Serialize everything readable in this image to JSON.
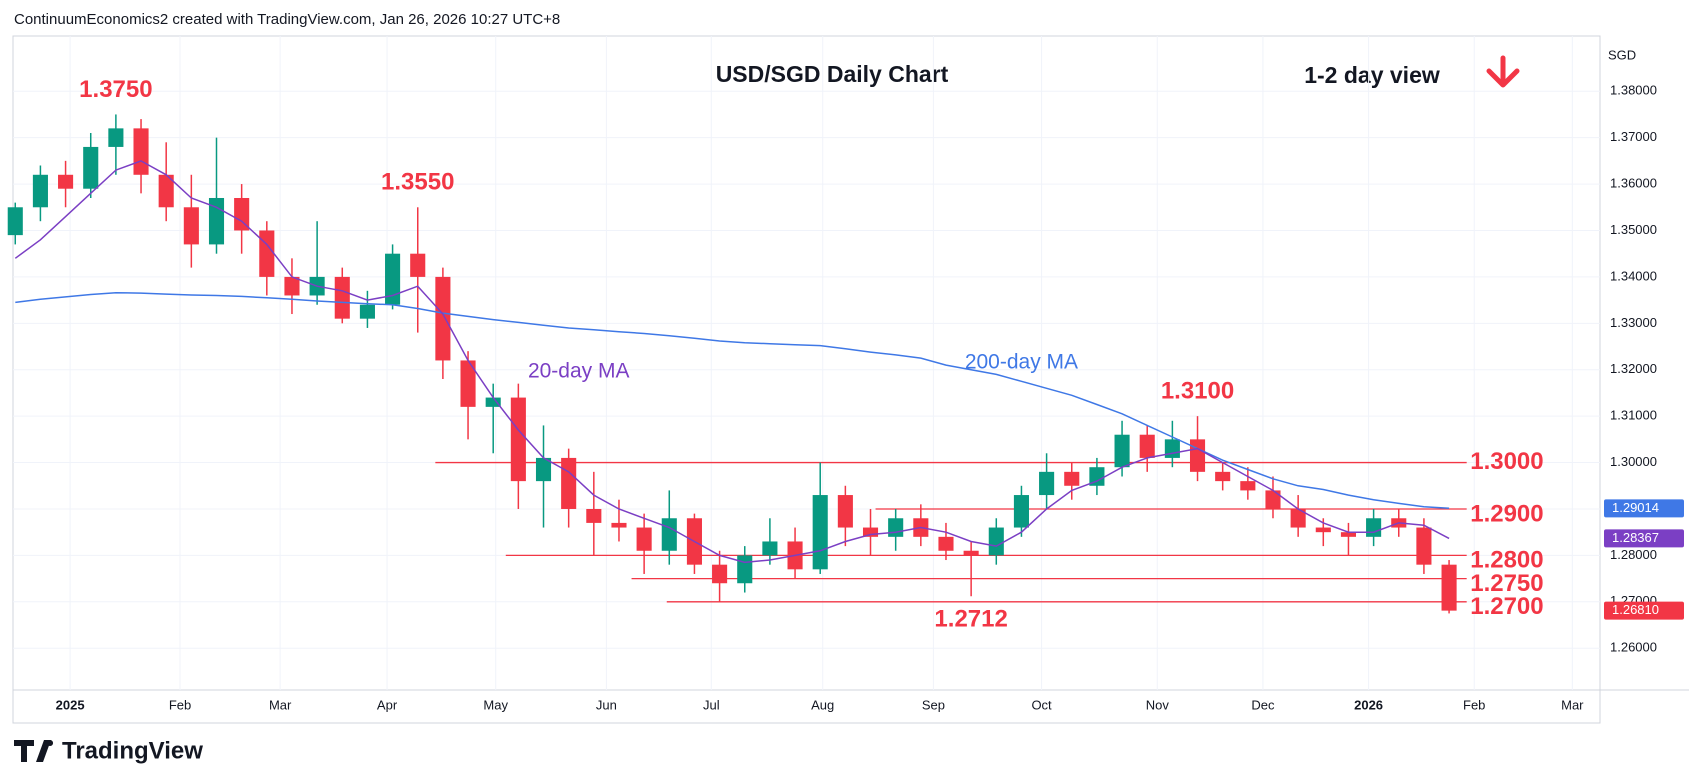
{
  "header": "ContinuumEconomics2 created with TradingView.com, Jan 26, 2026 10:27 UTC+8",
  "logo": "TradingView",
  "chart_data": {
    "type": "candlestick",
    "title": "USD/SGD Daily Chart",
    "subtitle": "1-2 day view",
    "currency": "SGD",
    "up_color": "#089981",
    "down_color": "#f23645",
    "categories": [
      null,
      null,
      null,
      null,
      null,
      null,
      null,
      null,
      null,
      null,
      null,
      null,
      null,
      null,
      null,
      null,
      null,
      null,
      null,
      null,
      null,
      null,
      null,
      null,
      null,
      null,
      null,
      null,
      null,
      null,
      null,
      null,
      null,
      null,
      null,
      null,
      null,
      null,
      null,
      null,
      null,
      null,
      null,
      null,
      null,
      null,
      null,
      null,
      null,
      null,
      null,
      null,
      null,
      null,
      null,
      null,
      null,
      null
    ],
    "open": [
      1.349,
      1.355,
      1.362,
      1.359,
      1.368,
      1.372,
      1.362,
      1.355,
      1.347,
      1.357,
      1.35,
      1.34,
      1.336,
      1.34,
      1.331,
      1.334,
      1.345,
      1.34,
      1.322,
      1.312,
      1.314,
      1.296,
      1.301,
      1.29,
      1.287,
      1.286,
      1.281,
      1.288,
      1.278,
      1.274,
      1.28,
      1.283,
      1.277,
      1.293,
      1.286,
      1.284,
      1.288,
      1.284,
      1.281,
      1.28,
      1.286,
      1.293,
      1.298,
      1.295,
      1.299,
      1.306,
      1.301,
      1.305,
      1.298,
      1.296,
      1.294,
      1.29,
      1.286,
      1.285,
      1.284,
      1.288,
      1.286,
      1.278
    ],
    "high": [
      1.356,
      1.364,
      1.365,
      1.371,
      1.375,
      1.374,
      1.369,
      1.362,
      1.37,
      1.36,
      1.352,
      1.344,
      1.352,
      1.342,
      1.337,
      1.347,
      1.355,
      1.342,
      1.324,
      1.317,
      1.317,
      1.308,
      1.303,
      1.298,
      1.292,
      1.289,
      1.294,
      1.289,
      1.281,
      1.282,
      1.288,
      1.286,
      1.3,
      1.295,
      1.29,
      1.29,
      1.291,
      1.287,
      1.283,
      1.288,
      1.295,
      1.302,
      1.3,
      1.301,
      1.309,
      1.308,
      1.309,
      1.31,
      1.3,
      1.299,
      1.297,
      1.293,
      1.288,
      1.287,
      1.29,
      1.29,
      1.288,
      1.279
    ],
    "low": [
      1.347,
      1.352,
      1.355,
      1.357,
      1.362,
      1.358,
      1.352,
      1.342,
      1.345,
      1.345,
      1.336,
      1.332,
      1.334,
      1.33,
      1.329,
      1.333,
      1.328,
      1.318,
      1.305,
      1.302,
      1.29,
      1.286,
      1.286,
      1.28,
      1.283,
      1.276,
      1.278,
      1.276,
      1.27,
      1.272,
      1.278,
      1.275,
      1.276,
      1.282,
      1.28,
      1.281,
      1.282,
      1.279,
      1.2712,
      1.278,
      1.284,
      1.29,
      1.292,
      1.293,
      1.297,
      1.298,
      1.299,
      1.296,
      1.294,
      1.292,
      1.288,
      1.284,
      1.282,
      1.28,
      1.282,
      1.284,
      1.276,
      1.2675
    ],
    "close": [
      1.355,
      1.362,
      1.359,
      1.368,
      1.372,
      1.362,
      1.355,
      1.347,
      1.357,
      1.35,
      1.34,
      1.336,
      1.34,
      1.331,
      1.334,
      1.345,
      1.34,
      1.322,
      1.312,
      1.314,
      1.296,
      1.301,
      1.29,
      1.287,
      1.286,
      1.281,
      1.288,
      1.278,
      1.274,
      1.28,
      1.283,
      1.277,
      1.293,
      1.286,
      1.284,
      1.288,
      1.284,
      1.281,
      1.28,
      1.286,
      1.293,
      1.298,
      1.295,
      1.299,
      1.306,
      1.301,
      1.305,
      1.298,
      1.296,
      1.294,
      1.29,
      1.286,
      1.285,
      1.284,
      1.288,
      1.286,
      1.278,
      1.2681
    ],
    "last_label": "1.26810",
    "series": [
      {
        "name": "200-day MA",
        "color": "#3f78e6",
        "last_label": "1.29014",
        "values": [
          1.3345,
          1.3352,
          1.3357,
          1.3362,
          1.3366,
          1.3365,
          1.3363,
          1.3361,
          1.336,
          1.3358,
          1.3355,
          1.3352,
          1.3348,
          1.3345,
          1.3342,
          1.334,
          1.3332,
          1.3322,
          1.3315,
          1.3308,
          1.3302,
          1.3296,
          1.329,
          1.3286,
          1.3282,
          1.3278,
          1.3273,
          1.3268,
          1.3262,
          1.3258,
          1.3256,
          1.3254,
          1.3252,
          1.3245,
          1.3238,
          1.3232,
          1.3225,
          1.321,
          1.32,
          1.319,
          1.3175,
          1.316,
          1.3145,
          1.3125,
          1.3105,
          1.308,
          1.3055,
          1.303,
          1.3005,
          1.2985,
          1.2965,
          1.295,
          1.2942,
          1.293,
          1.292,
          1.2912,
          1.2905,
          1.29014
        ]
      },
      {
        "name": "20-day MA",
        "color": "#7b3fc4",
        "last_label": "1.28367",
        "values": [
          1.344,
          1.348,
          1.353,
          1.358,
          1.363,
          1.365,
          1.362,
          1.357,
          1.355,
          1.352,
          1.347,
          1.34,
          1.338,
          1.337,
          1.335,
          1.336,
          1.338,
          1.332,
          1.322,
          1.314,
          1.307,
          1.301,
          1.298,
          1.293,
          1.29,
          1.288,
          1.286,
          1.283,
          1.28,
          1.2785,
          1.279,
          1.28,
          1.281,
          1.283,
          1.2845,
          1.285,
          1.286,
          1.285,
          1.283,
          1.282,
          1.285,
          1.29,
          1.294,
          1.296,
          1.299,
          1.301,
          1.302,
          1.303,
          1.3,
          1.297,
          1.294,
          1.29,
          1.287,
          1.285,
          1.285,
          1.287,
          1.2865,
          1.28367
        ]
      }
    ],
    "levels": [
      {
        "value": 1.3,
        "label": "1.3000",
        "from": 16.7
      },
      {
        "value": 1.29,
        "label": "1.2900",
        "from": 34.2
      },
      {
        "value": 1.28,
        "label": "1.2800",
        "from": 19.5
      },
      {
        "value": 1.275,
        "label": "1.2750",
        "from": 24.5
      },
      {
        "value": 1.27,
        "label": "1.2700",
        "from": 25.9
      }
    ],
    "annotations": [
      {
        "label": "1.3750",
        "value": 1.375,
        "x": 4,
        "position": "above"
      },
      {
        "label": "1.3550",
        "value": 1.355,
        "x": 16,
        "position": "above"
      },
      {
        "label": "1.3100",
        "value": 1.31,
        "x": 47,
        "position": "above"
      },
      {
        "label": "1.2712",
        "value": 1.2712,
        "x": 38,
        "position": "below"
      }
    ],
    "xlim": [
      -0.09,
      63.0
    ],
    "xticks": [
      {
        "value": 2.18,
        "label": "2025"
      },
      {
        "value": 6.55,
        "label": "Feb"
      },
      {
        "value": 10.53,
        "label": "Mar"
      },
      {
        "value": 14.78,
        "label": "Apr"
      },
      {
        "value": 19.1,
        "label": "May"
      },
      {
        "value": 23.5,
        "label": "Jun"
      },
      {
        "value": 27.67,
        "label": "Jul"
      },
      {
        "value": 32.1,
        "label": "Aug"
      },
      {
        "value": 36.5,
        "label": "Sep"
      },
      {
        "value": 40.8,
        "label": "Oct"
      },
      {
        "value": 45.4,
        "label": "Nov"
      },
      {
        "value": 49.6,
        "label": "Dec"
      },
      {
        "value": 53.8,
        "label": "2026"
      },
      {
        "value": 58.0,
        "label": "Feb"
      },
      {
        "value": 61.9,
        "label": "Mar"
      }
    ],
    "ylim": [
      1.251,
      1.3919
    ],
    "yticks": [
      {
        "value": 1.26,
        "label": "1.26000"
      },
      {
        "value": 1.27,
        "label": "1.27000"
      },
      {
        "value": 1.28,
        "label": "1.28000"
      },
      {
        "value": 1.29,
        "label": "1.29000"
      },
      {
        "value": 1.3,
        "label": "1.30000"
      },
      {
        "value": 1.31,
        "label": "1.31000"
      },
      {
        "value": 1.32,
        "label": "1.32000"
      },
      {
        "value": 1.33,
        "label": "1.33000"
      },
      {
        "value": 1.34,
        "label": "1.34000"
      },
      {
        "value": 1.35,
        "label": "1.35000"
      },
      {
        "value": 1.36,
        "label": "1.36000"
      },
      {
        "value": 1.37,
        "label": "1.37000"
      },
      {
        "value": 1.38,
        "label": "1.38000"
      }
    ],
    "grid": true
  }
}
